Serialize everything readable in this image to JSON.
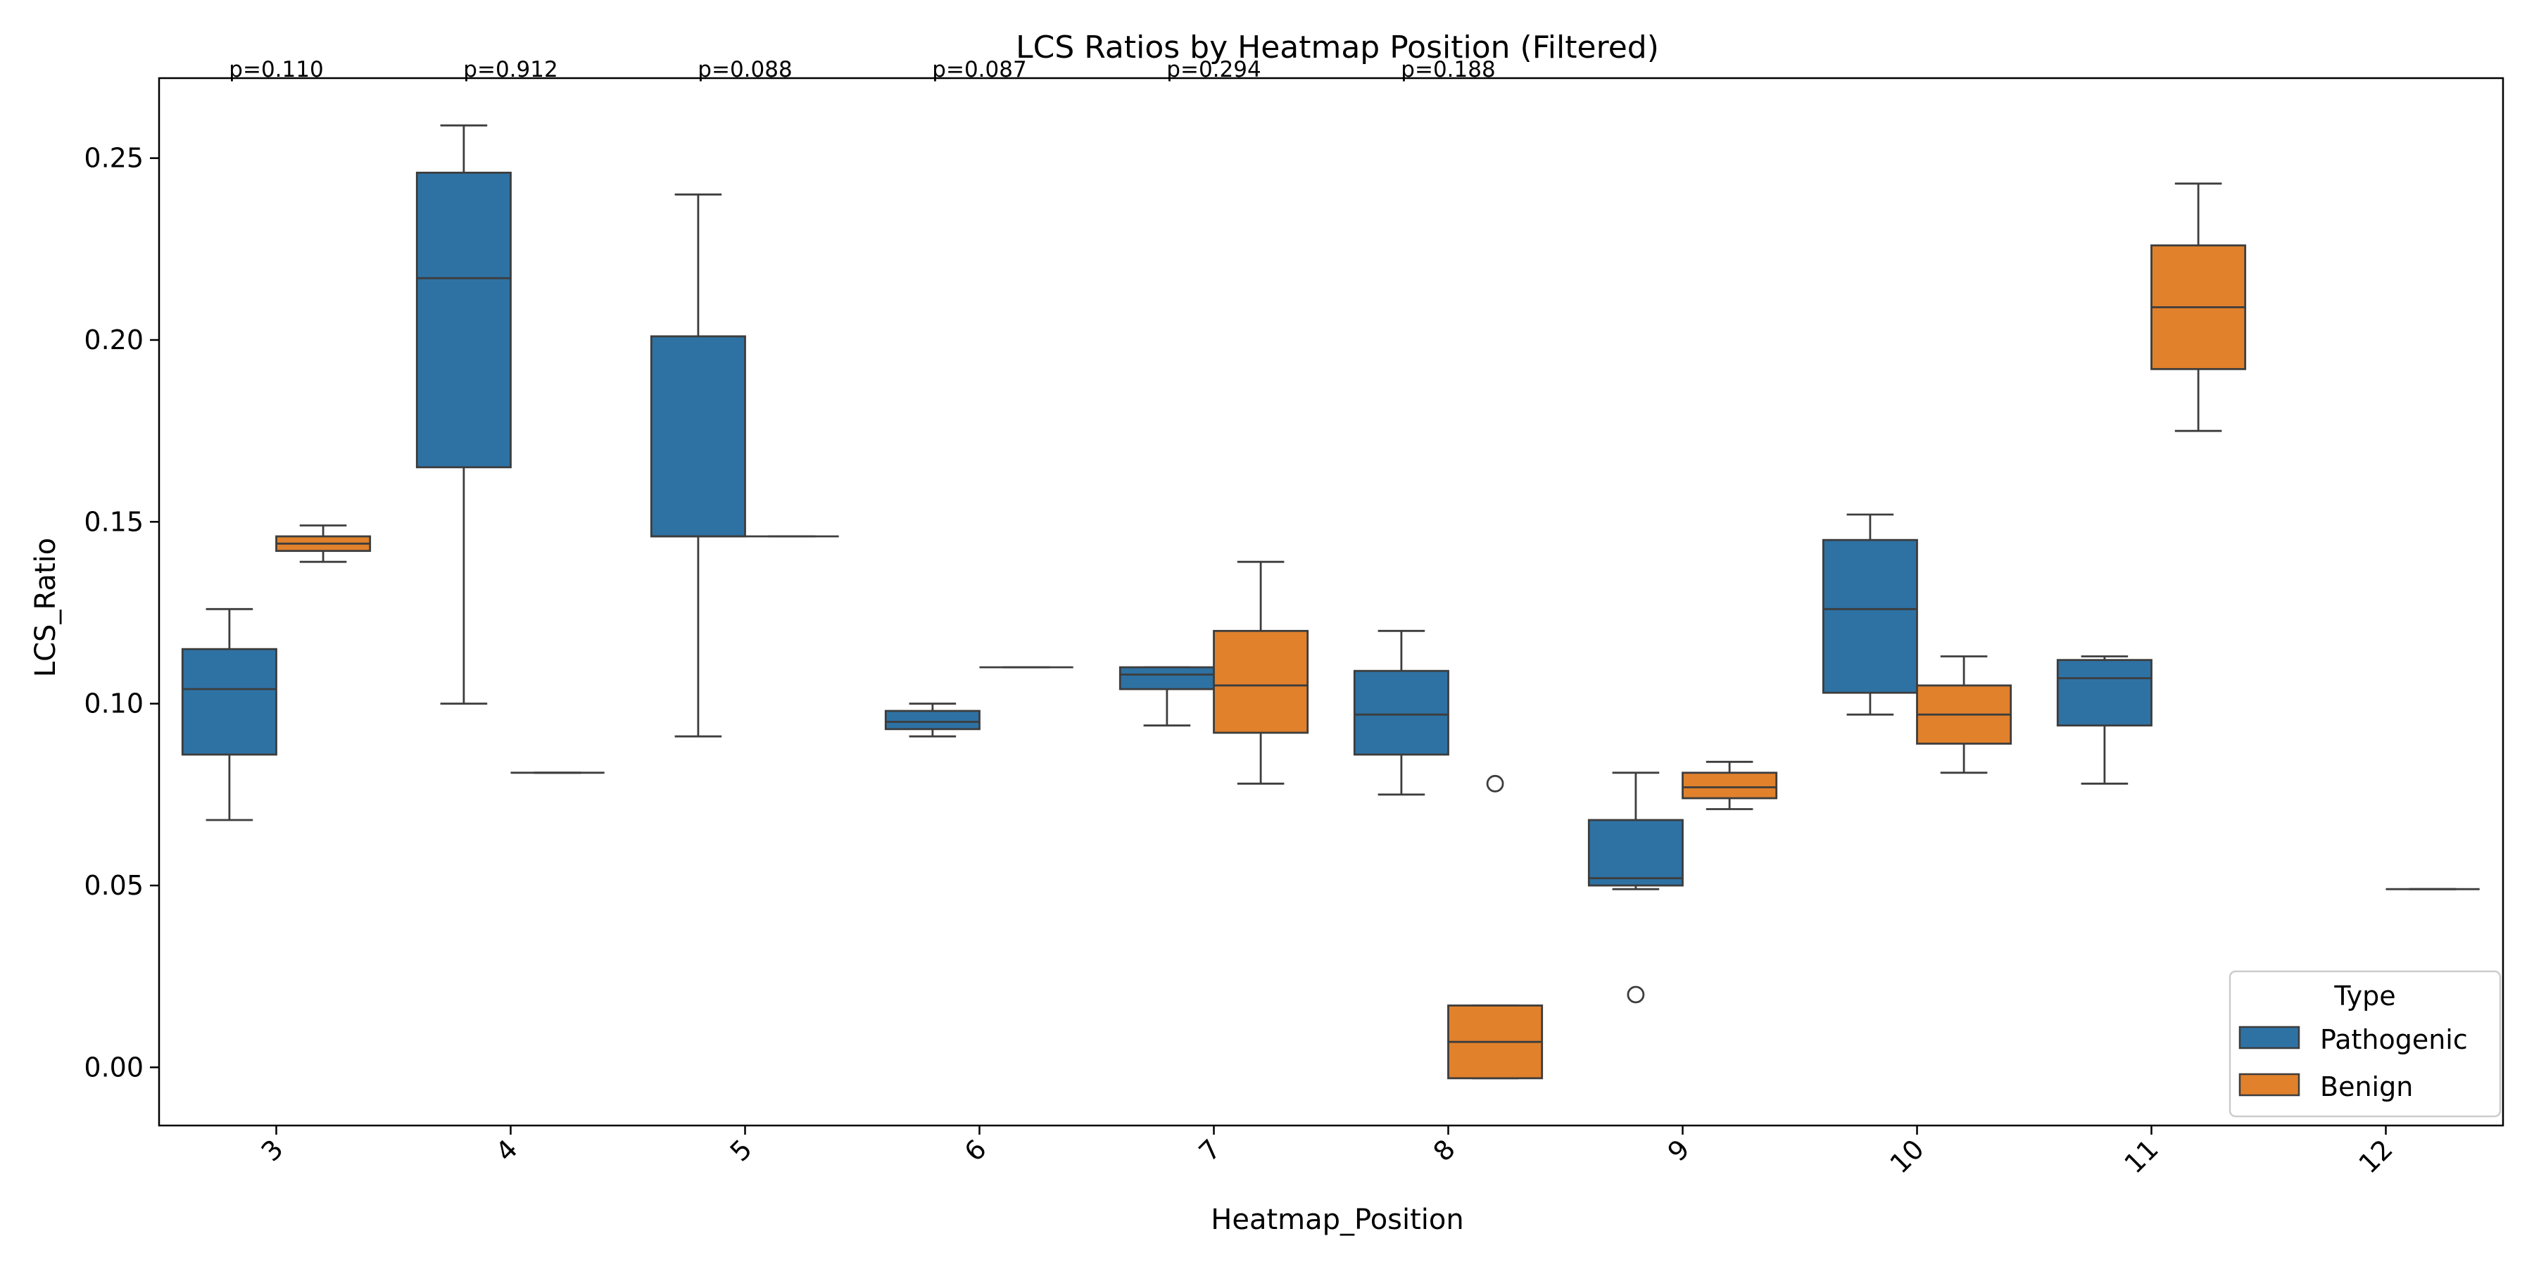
{
  "chart_data": {
    "type": "box",
    "title": "LCS Ratios by Heatmap Position (Filtered)",
    "xlabel": "Heatmap_Position",
    "ylabel": "LCS_Ratio",
    "ylim": [
      -0.016,
      0.272
    ],
    "yticks": [
      0.0,
      0.05,
      0.1,
      0.15,
      0.2,
      0.25
    ],
    "ytick_labels": [
      "0.00",
      "0.05",
      "0.10",
      "0.15",
      "0.20",
      "0.25"
    ],
    "categories": [
      "3",
      "4",
      "5",
      "6",
      "7",
      "8",
      "9",
      "10",
      "11",
      "12"
    ],
    "pvalues": [
      "p=0.110",
      "p=0.912",
      "p=0.088",
      "p=0.087",
      "p=0.294",
      "p=0.188"
    ],
    "legend": {
      "title": "Type",
      "position": "lower-right",
      "entries": [
        {
          "label": "Pathogenic",
          "color": "#2e72a4"
        },
        {
          "label": "Benign",
          "color": "#e1812c"
        }
      ]
    },
    "series": [
      {
        "name": "Pathogenic",
        "color": "#2e72a4",
        "boxes": [
          {
            "category": "3",
            "whislo": 0.068,
            "q1": 0.086,
            "med": 0.104,
            "q3": 0.115,
            "whishi": 0.126,
            "fliers": []
          },
          {
            "category": "4",
            "whislo": 0.1,
            "q1": 0.165,
            "med": 0.217,
            "q3": 0.246,
            "whishi": 0.259,
            "fliers": []
          },
          {
            "category": "5",
            "whislo": 0.091,
            "q1": 0.146,
            "med": 0.146,
            "q3": 0.201,
            "whishi": 0.24,
            "fliers": []
          },
          {
            "category": "6",
            "whislo": 0.091,
            "q1": 0.093,
            "med": 0.095,
            "q3": 0.098,
            "whishi": 0.1,
            "fliers": []
          },
          {
            "category": "7",
            "whislo": 0.094,
            "q1": 0.104,
            "med": 0.108,
            "q3": 0.11,
            "whishi": 0.11,
            "fliers": []
          },
          {
            "category": "8",
            "whislo": 0.075,
            "q1": 0.086,
            "med": 0.097,
            "q3": 0.109,
            "whishi": 0.12,
            "fliers": []
          },
          {
            "category": "9",
            "whislo": 0.049,
            "q1": 0.05,
            "med": 0.052,
            "q3": 0.068,
            "whishi": 0.081,
            "fliers": [
              0.02
            ]
          },
          {
            "category": "10",
            "whislo": 0.097,
            "q1": 0.103,
            "med": 0.126,
            "q3": 0.145,
            "whishi": 0.152,
            "fliers": []
          },
          {
            "category": "11",
            "whislo": 0.078,
            "q1": 0.094,
            "med": 0.107,
            "q3": 0.112,
            "whishi": 0.113,
            "fliers": []
          }
        ]
      },
      {
        "name": "Benign",
        "color": "#e1812c",
        "boxes": [
          {
            "category": "3",
            "whislo": 0.139,
            "q1": 0.142,
            "med": 0.144,
            "q3": 0.146,
            "whishi": 0.149,
            "fliers": []
          },
          {
            "category": "4",
            "whislo": 0.081,
            "q1": 0.081,
            "med": 0.081,
            "q3": 0.081,
            "whishi": 0.081,
            "fliers": []
          },
          {
            "category": "5",
            "whislo": 0.146,
            "q1": 0.146,
            "med": 0.146,
            "q3": 0.146,
            "whishi": 0.146,
            "fliers": []
          },
          {
            "category": "6",
            "whislo": 0.11,
            "q1": 0.11,
            "med": 0.11,
            "q3": 0.11,
            "whishi": 0.11,
            "fliers": []
          },
          {
            "category": "7",
            "whislo": 0.078,
            "q1": 0.092,
            "med": 0.105,
            "q3": 0.12,
            "whishi": 0.139,
            "fliers": []
          },
          {
            "category": "8",
            "whislo": -0.003,
            "q1": -0.003,
            "med": 0.007,
            "q3": 0.017,
            "whishi": 0.017,
            "fliers": [
              0.078
            ]
          },
          {
            "category": "9",
            "whislo": 0.071,
            "q1": 0.074,
            "med": 0.077,
            "q3": 0.081,
            "whishi": 0.084,
            "fliers": []
          },
          {
            "category": "10",
            "whislo": 0.081,
            "q1": 0.089,
            "med": 0.097,
            "q3": 0.105,
            "whishi": 0.113,
            "fliers": []
          },
          {
            "category": "11",
            "whislo": 0.175,
            "q1": 0.192,
            "med": 0.209,
            "q3": 0.226,
            "whishi": 0.243,
            "fliers": []
          },
          {
            "category": "12",
            "whislo": 0.049,
            "q1": 0.049,
            "med": 0.049,
            "q3": 0.049,
            "whishi": 0.049,
            "fliers": []
          }
        ]
      }
    ]
  }
}
